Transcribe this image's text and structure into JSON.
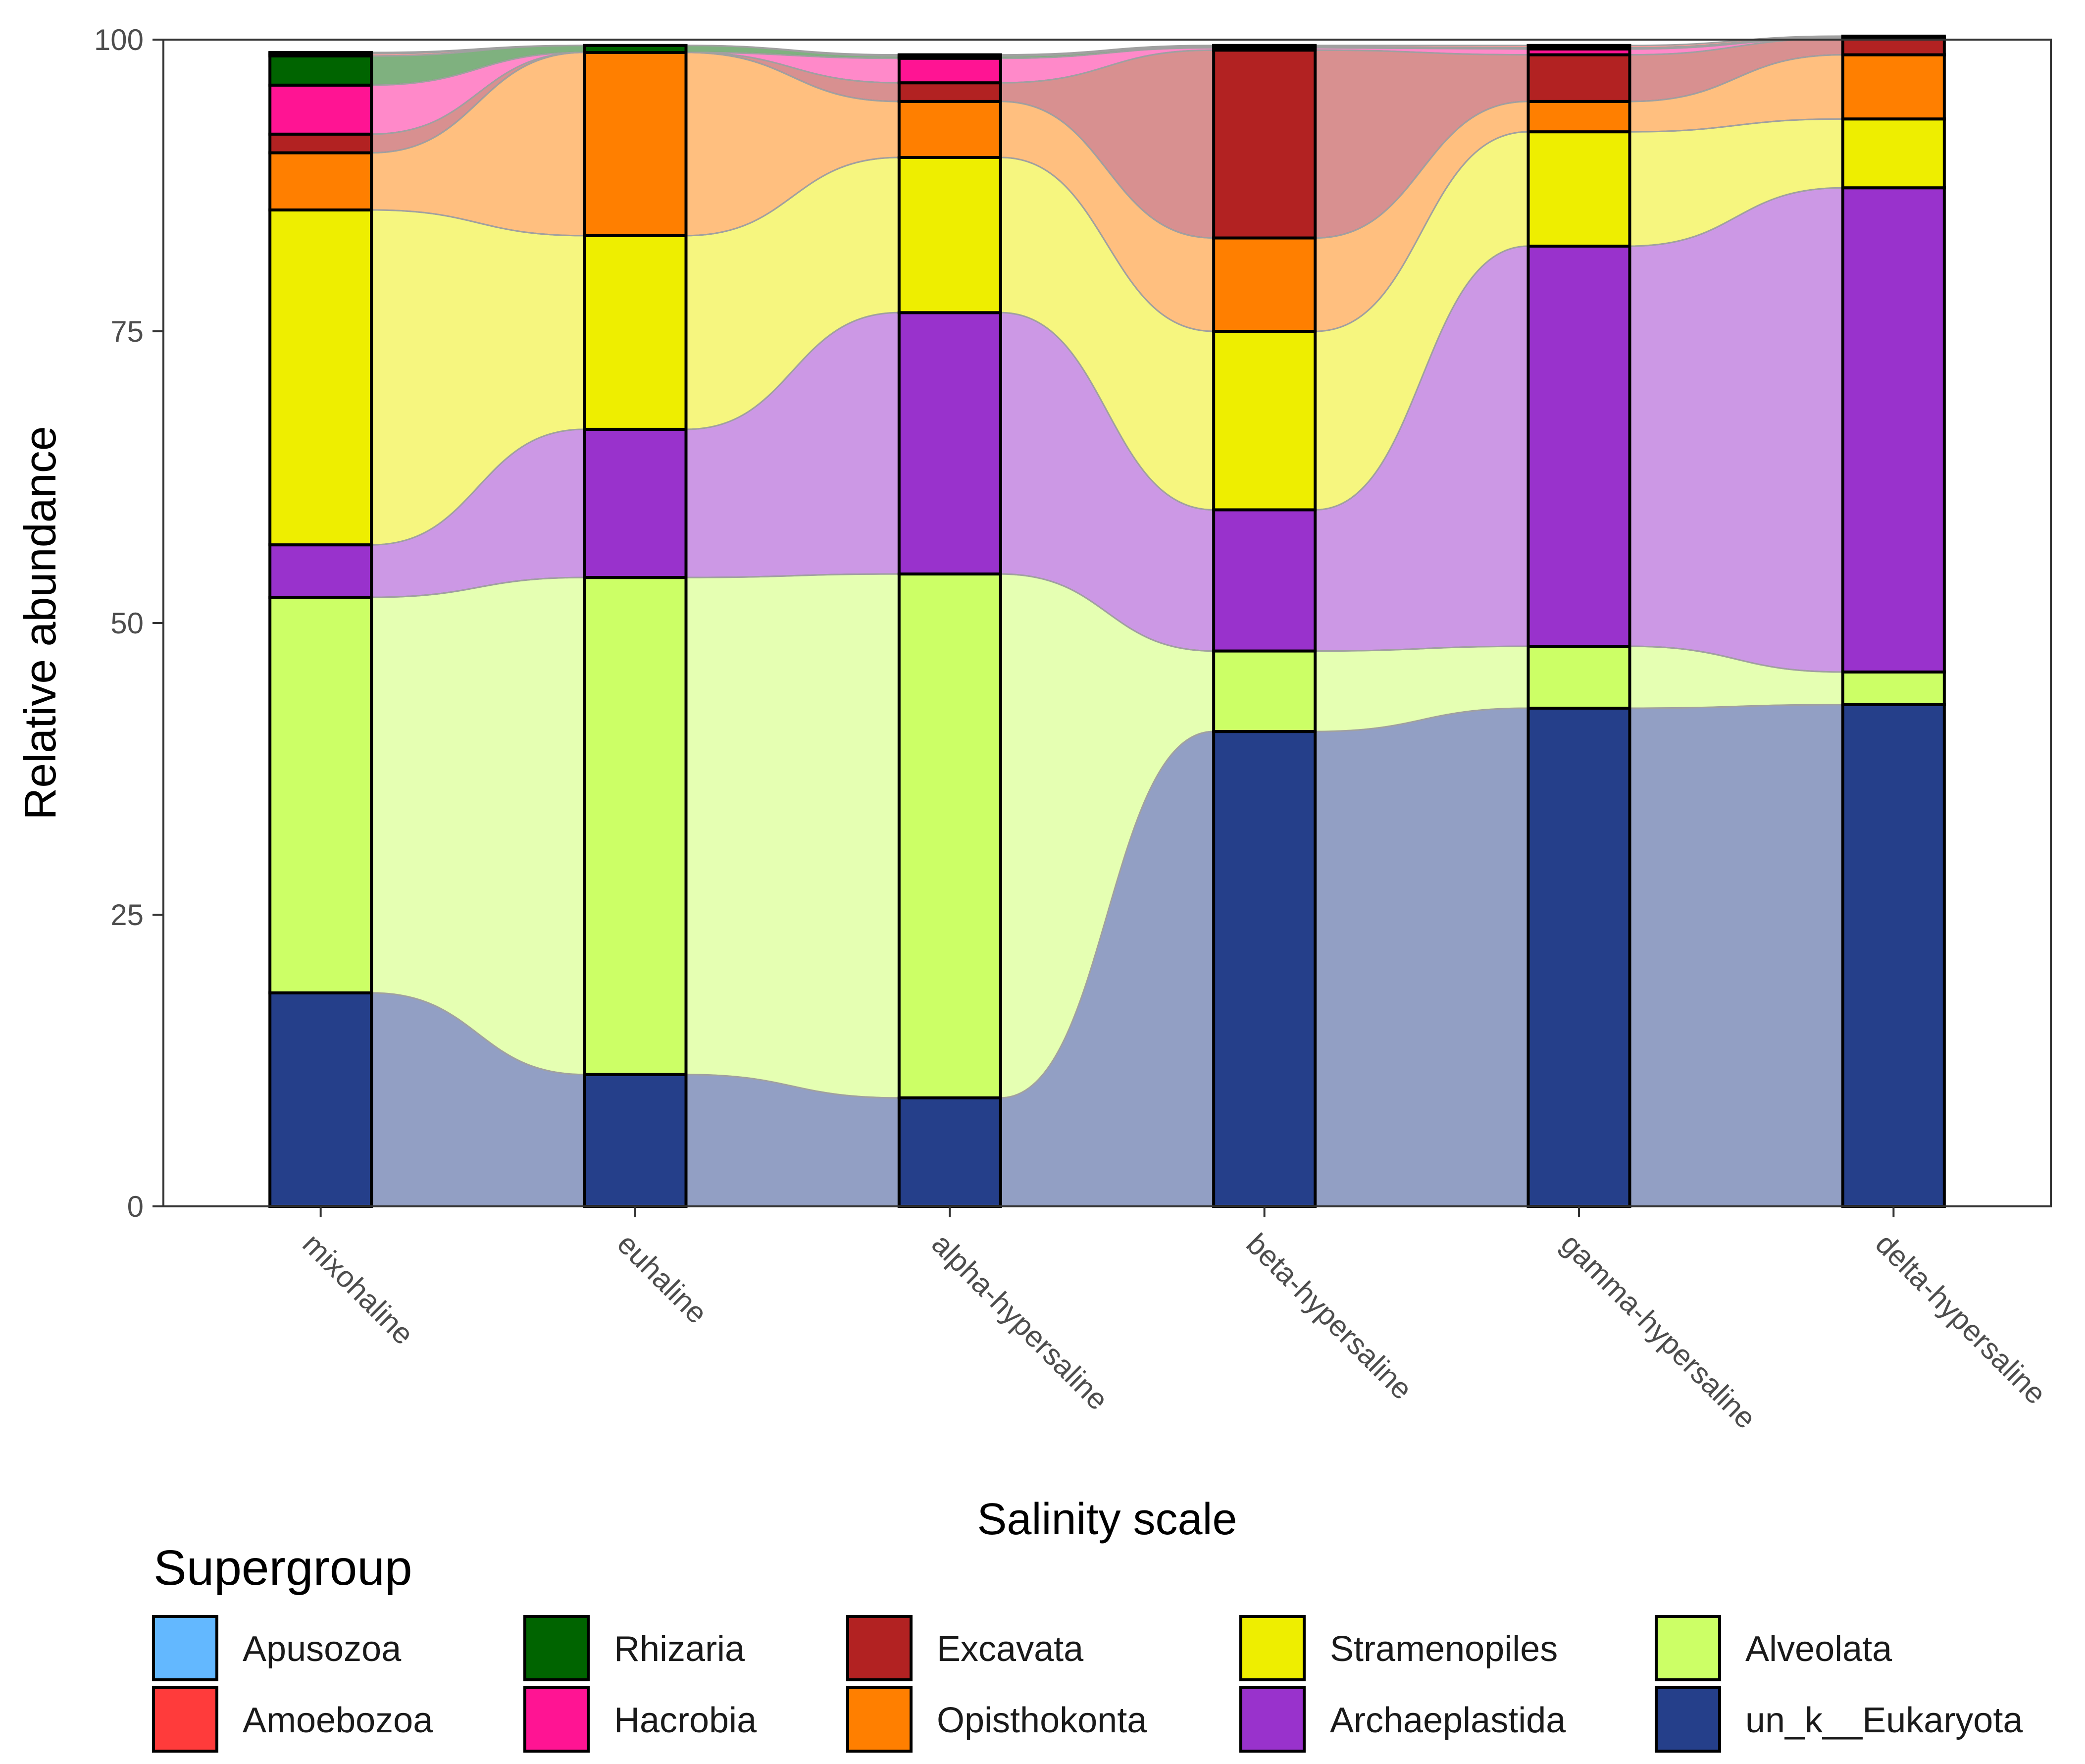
{
  "chart_data": {
    "type": "bar",
    "subtype": "stacked-alluvial",
    "xlabel": "Salinity scale",
    "ylabel": "Relative abundance",
    "ylim": [
      0,
      100
    ],
    "yticks": [
      "0",
      "25",
      "50",
      "75",
      "100"
    ],
    "categories": [
      "mixohaline",
      "euhaline",
      "alpha-hypersaline",
      "beta-hypersaline",
      "gamma-hypersaline",
      "delta-hypersaline"
    ],
    "legend_title": "Supergroup",
    "series": [
      {
        "name": "un_k__Eukaryota",
        "color": "#253f8a",
        "values": [
          18.3,
          11.3,
          9.3,
          40.7,
          42.7,
          43.0
        ]
      },
      {
        "name": "Alveolata",
        "color": "#ccff66",
        "values": [
          33.9,
          42.6,
          44.9,
          6.9,
          5.3,
          2.8
        ]
      },
      {
        "name": "Archaeplastida",
        "color": "#9932cc",
        "values": [
          4.5,
          12.7,
          22.4,
          12.1,
          34.3,
          41.5
        ]
      },
      {
        "name": "Stramenopiles",
        "color": "#eeee00",
        "values": [
          28.7,
          16.6,
          13.3,
          15.3,
          9.8,
          5.9
        ]
      },
      {
        "name": "Opisthokonta",
        "color": "#ff7f00",
        "values": [
          4.9,
          15.7,
          4.8,
          8.0,
          2.6,
          5.5
        ]
      },
      {
        "name": "Excavata",
        "color": "#b22222",
        "values": [
          1.6,
          0.0,
          1.6,
          16.1,
          4.0,
          1.4
        ]
      },
      {
        "name": "Hacrobia",
        "color": "#ff1493",
        "values": [
          4.2,
          0.0,
          2.1,
          0.2,
          0.5,
          0.0
        ]
      },
      {
        "name": "Rhizaria",
        "color": "#006400",
        "values": [
          2.5,
          0.6,
          0.2,
          0.1,
          0.1,
          0.1
        ]
      },
      {
        "name": "Amoebozoa",
        "color": "#ff3b3b",
        "values": [
          0.2,
          0.0,
          0.1,
          0.1,
          0.2,
          0.1
        ]
      },
      {
        "name": "Apusozoa",
        "color": "#63b8ff",
        "values": [
          0.1,
          0.0,
          0.0,
          0.0,
          0.0,
          0.0
        ]
      }
    ],
    "legend_order": [
      "Apusozoa",
      "Amoebozoa",
      "Rhizaria",
      "Hacrobia",
      "Excavata",
      "Opisthokonta",
      "Stramenopiles",
      "Archaeplastida",
      "Alveolata",
      "un_k__Eukaryota"
    ],
    "legend_position": "bottom",
    "grid": false
  }
}
